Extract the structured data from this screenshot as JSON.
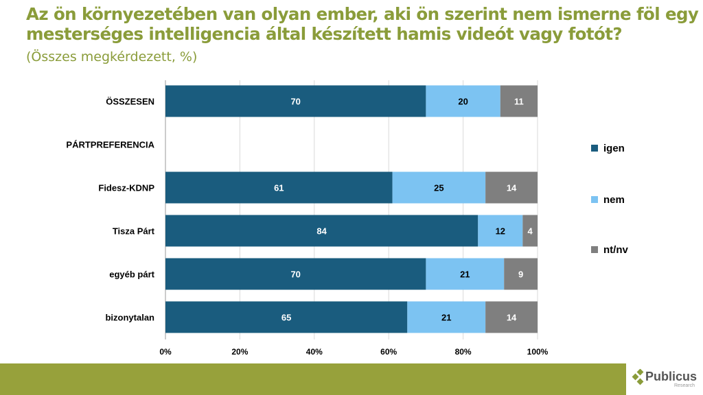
{
  "title": "Az ön környezetében van olyan ember, aki ön szerint nem ismerne föl egy mesterséges intelligencia által készített hamis videót vagy fotót?",
  "subtitle": "(Összes megkérdezett, %)",
  "logo": {
    "name": "Publicus",
    "sub": "Research"
  },
  "chart_data": {
    "type": "bar",
    "orientation": "horizontal-stacked",
    "categories": [
      "ÖSSZESEN",
      "PÁRTPREFERENCIA",
      "Fidesz-KDNP",
      "Tisza Párt",
      "egyéb párt",
      "bizonytalan"
    ],
    "series": [
      {
        "name": "igen",
        "color": "#1a5c7e",
        "values": [
          70,
          null,
          61,
          84,
          70,
          65
        ]
      },
      {
        "name": "nem",
        "color": "#7cc3f2",
        "values": [
          20,
          null,
          25,
          12,
          21,
          21
        ]
      },
      {
        "name": "nt/nv",
        "color": "#7f7f7f",
        "values": [
          11,
          null,
          14,
          4,
          9,
          14
        ]
      }
    ],
    "xlim": [
      0,
      100
    ],
    "xticks": [
      "0%",
      "20%",
      "40%",
      "60%",
      "80%",
      "100%"
    ],
    "grid": true,
    "legend": "right"
  }
}
